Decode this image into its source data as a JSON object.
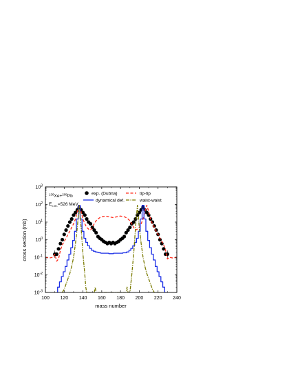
{
  "chart_data": {
    "type": "line",
    "xlabel": "mass number",
    "ylabel": "cross section (mb)",
    "xlim": [
      100,
      240
    ],
    "ylim_log10": [
      -3,
      3
    ],
    "yscale": "log",
    "grid": false,
    "legend_position": "top",
    "x_ticks": [
      "100",
      "120",
      "140",
      "160",
      "180",
      "200",
      "220",
      "240"
    ],
    "y_ticks": [
      {
        "base": "10",
        "exp": "-3"
      },
      {
        "base": "10",
        "exp": "-2"
      },
      {
        "base": "10",
        "exp": "-1"
      },
      {
        "base": "10",
        "exp": "0"
      },
      {
        "base": "10",
        "exp": "1"
      },
      {
        "base": "10",
        "exp": "2"
      },
      {
        "base": "10",
        "exp": "3"
      }
    ],
    "annotation": {
      "line1_a": "136",
      "line1_b": "Xe+",
      "line1_c": "208",
      "line1_d": "Pb",
      "line2_a": "E",
      "line2_b": "c.m.",
      "line2_c": "=526 MeV"
    },
    "series": [
      {
        "name": "exp. (Dubna)",
        "style": "dots",
        "color": "#000000",
        "x": [
          110,
          112,
          114,
          116,
          118,
          120,
          122,
          124,
          126,
          128,
          130,
          132,
          134,
          136,
          138,
          140,
          142,
          144,
          146,
          148,
          150,
          152,
          154,
          156,
          158,
          160,
          162,
          164,
          166,
          168,
          170,
          172,
          174,
          176,
          178,
          180,
          182,
          184,
          186,
          188,
          190,
          192,
          194,
          196,
          198,
          200,
          202,
          204,
          206,
          208,
          210,
          212,
          214,
          216,
          218,
          220,
          222,
          224,
          226,
          228,
          230
        ],
        "y": [
          0.15,
          0.15,
          0.3,
          0.6,
          1.0,
          2.0,
          3.5,
          6,
          10,
          15,
          25,
          35,
          50,
          70,
          50,
          35,
          25,
          15,
          10,
          8,
          5,
          3.5,
          2.5,
          1.5,
          1.2,
          1.0,
          0.8,
          0.7,
          0.6,
          0.7,
          0.6,
          0.7,
          0.6,
          0.7,
          0.8,
          1.0,
          1.2,
          1.5,
          2.5,
          3.5,
          5,
          8,
          10,
          15,
          25,
          35,
          50,
          70,
          50,
          35,
          25,
          15,
          10,
          6,
          3.5,
          2.0,
          1.0,
          0.6,
          0.3,
          0.15,
          0.15
        ]
      },
      {
        "name": "tip-tip",
        "style": "dashed",
        "color": "#ff2a1a",
        "x": [
          100,
          104,
          108,
          110,
          112,
          114,
          116,
          118,
          120,
          122,
          124,
          126,
          128,
          130,
          132,
          134,
          136,
          138,
          140,
          142,
          144,
          146,
          148,
          150,
          152,
          154,
          156,
          158,
          160,
          164,
          168,
          172,
          176,
          180,
          184,
          186,
          188,
          190,
          192,
          194,
          196,
          198,
          200,
          202,
          204,
          206,
          208,
          210,
          212,
          214,
          216,
          218,
          220,
          222,
          224,
          226,
          228,
          230,
          232,
          236,
          240
        ],
        "y": [
          0.1,
          0.09,
          0.1,
          0.15,
          0.06,
          0.08,
          0.25,
          0.5,
          0.8,
          1.2,
          2.0,
          3.0,
          5.0,
          8.0,
          15,
          40,
          90,
          40,
          15,
          8,
          5,
          4,
          3.5,
          5,
          8,
          12,
          15,
          18,
          20,
          22,
          20,
          18,
          20,
          22,
          20,
          18,
          15,
          12,
          8,
          5,
          3.5,
          4,
          5,
          8,
          15,
          40,
          90,
          40,
          15,
          8,
          5,
          3,
          2,
          1.2,
          0.8,
          0.5,
          0.25,
          0.08,
          0.1,
          0.09,
          0.1
        ]
      },
      {
        "name": "dynamical def.",
        "style": "solid",
        "color": "#1a2ee6",
        "x": [
          112,
          114,
          116,
          118,
          120,
          122,
          124,
          126,
          128,
          130,
          132,
          134,
          136,
          138,
          140,
          142,
          144,
          146,
          148,
          150,
          152,
          154,
          156,
          158,
          160,
          165,
          170,
          175,
          180,
          185,
          188,
          190,
          192,
          194,
          196,
          198,
          200,
          202,
          204,
          206,
          208,
          210,
          212,
          214,
          216,
          218,
          220,
          222,
          224,
          226,
          228,
          230
        ],
        "y": [
          0.001,
          0.002,
          0.004,
          0.008,
          0.015,
          0.03,
          0.07,
          0.15,
          0.35,
          0.9,
          3,
          15,
          90,
          15,
          3,
          1.2,
          0.7,
          0.45,
          0.32,
          0.25,
          0.22,
          0.2,
          0.19,
          0.18,
          0.17,
          0.17,
          0.16,
          0.17,
          0.17,
          0.18,
          0.2,
          0.25,
          0.32,
          0.45,
          0.7,
          1.2,
          3,
          15,
          90,
          15,
          3,
          0.9,
          0.35,
          0.15,
          0.07,
          0.03,
          0.015,
          0.008,
          0.004,
          0.002,
          0.001,
          0.0008
        ]
      },
      {
        "name": "waist-waist",
        "style": "dashdot",
        "color": "#7a7a00",
        "x": [
          118,
          120,
          122,
          124,
          126,
          128,
          130,
          132,
          134,
          136,
          138,
          140,
          142,
          143,
          144,
          146,
          148,
          152,
          153,
          154,
          186,
          187,
          188,
          190,
          192,
          194,
          196,
          198,
          200,
          202,
          204,
          206,
          208,
          210,
          212,
          214,
          216,
          218,
          220,
          222
        ],
        "y": [
          0.001,
          0.0015,
          0.003,
          0.006,
          0.012,
          0.03,
          0.1,
          0.6,
          5,
          90,
          5,
          0.15,
          0.01,
          0.002,
          0.001,
          0.001,
          0.001,
          0.001,
          0.002,
          0.001,
          0.001,
          0.002,
          0.001,
          0.001,
          0.01,
          0.15,
          5,
          90,
          5,
          0.6,
          0.1,
          0.03,
          0.012,
          0.006,
          0.003,
          0.0015,
          0.001,
          0.001,
          0.001,
          0.001
        ]
      }
    ]
  }
}
